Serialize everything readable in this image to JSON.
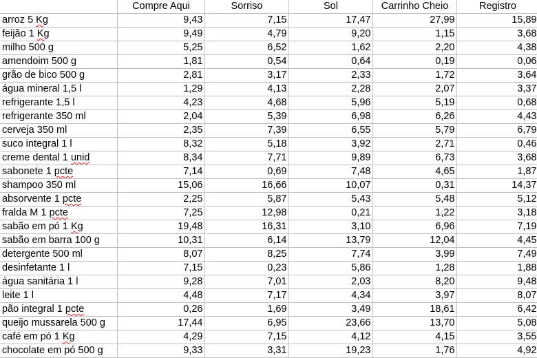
{
  "headers": [
    "",
    "Compre Aqui",
    "Sorriso",
    "Sol",
    "Carrinho Cheio",
    "Registro"
  ],
  "rows": [
    {
      "item": "arroz 5 Kg",
      "spell": "Kg",
      "values": [
        "9,43",
        "7,15",
        "17,47",
        "27,99",
        "15,89"
      ]
    },
    {
      "item": "feijão 1 Kg",
      "spell": "Kg",
      "values": [
        "9,49",
        "4,79",
        "9,20",
        "1,15",
        "3,68"
      ]
    },
    {
      "item": "milho 500 g",
      "spell": "",
      "values": [
        "5,25",
        "6,52",
        "1,62",
        "2,20",
        "4,38"
      ]
    },
    {
      "item": "amendoim 500 g",
      "spell": "",
      "values": [
        "1,81",
        "0,54",
        "0,64",
        "0,19",
        "0,06"
      ]
    },
    {
      "item": "grão de bico 500 g",
      "spell": "",
      "values": [
        "2,81",
        "3,17",
        "2,33",
        "1,72",
        "3,64"
      ]
    },
    {
      "item": "água mineral 1,5 l",
      "spell": "",
      "values": [
        "1,29",
        "4,13",
        "2,28",
        "2,07",
        "3,37"
      ]
    },
    {
      "item": "refrigerante 1,5 l",
      "spell": "",
      "values": [
        "4,23",
        "4,68",
        "5,96",
        "5,19",
        "0,68"
      ]
    },
    {
      "item": "refrigerante 350 ml",
      "spell": "",
      "values": [
        "2,04",
        "5,39",
        "6,98",
        "6,26",
        "4,43"
      ]
    },
    {
      "item": "cerveja 350 ml",
      "spell": "",
      "values": [
        "2,35",
        "7,39",
        "6,55",
        "5,79",
        "6,79"
      ]
    },
    {
      "item": "suco integral 1 l",
      "spell": "",
      "values": [
        "8,32",
        "5,18",
        "3,92",
        "2,71",
        "0,46"
      ]
    },
    {
      "item": "creme dental 1 unid",
      "spell": "unid",
      "values": [
        "8,34",
        "7,71",
        "9,89",
        "6,73",
        "3,68"
      ]
    },
    {
      "item": "sabonete 1 pcte",
      "spell": "pcte",
      "values": [
        "7,14",
        "0,69",
        "7,48",
        "4,65",
        "1,87"
      ]
    },
    {
      "item": "shampoo 350 ml",
      "spell": "",
      "values": [
        "15,06",
        "16,66",
        "10,07",
        "0,31",
        "14,37"
      ]
    },
    {
      "item": "absorvente 1 pcte",
      "spell": "pcte",
      "values": [
        "2,25",
        "5,87",
        "5,43",
        "5,48",
        "5,12"
      ]
    },
    {
      "item": "fralda M 1 pcte",
      "spell": "pcte",
      "values": [
        "7,25",
        "12,98",
        "0,21",
        "1,22",
        "3,18"
      ]
    },
    {
      "item": "sabão em pó 1 Kg",
      "spell": "Kg",
      "values": [
        "19,48",
        "16,31",
        "3,10",
        "6,96",
        "7,19"
      ]
    },
    {
      "item": "sabão em barra 100 g",
      "spell": "",
      "values": [
        "10,31",
        "6,14",
        "13,79",
        "12,04",
        "4,45"
      ]
    },
    {
      "item": "detergente 500 ml",
      "spell": "",
      "values": [
        "8,07",
        "8,25",
        "7,74",
        "3,99",
        "7,49"
      ]
    },
    {
      "item": "desinfetante 1 l",
      "spell": "",
      "values": [
        "7,15",
        "0,23",
        "5,86",
        "1,28",
        "1,88"
      ]
    },
    {
      "item": "água sanitária 1 l",
      "spell": "",
      "values": [
        "9,28",
        "7,01",
        "2,03",
        "8,20",
        "9,48"
      ]
    },
    {
      "item": "leite 1 l",
      "spell": "",
      "values": [
        "4,48",
        "7,17",
        "4,34",
        "3,97",
        "8,07"
      ]
    },
    {
      "item": "pão integral 1 pcte",
      "spell": "pcte",
      "values": [
        "0,26",
        "1,69",
        "3,49",
        "18,61",
        "6,42"
      ]
    },
    {
      "item": "queijo mussarela 500 g",
      "spell": "",
      "values": [
        "17,44",
        "6,95",
        "23,66",
        "13,70",
        "5,08"
      ]
    },
    {
      "item": "café em pó 1 Kg",
      "spell": "Kg",
      "values": [
        "4,29",
        "7,15",
        "4,12",
        "4,15",
        "3,55"
      ]
    },
    {
      "item": "chocolate em pó 500 g",
      "spell": "",
      "values": [
        "9,33",
        "3,31",
        "19,23",
        "1,76",
        "4,92"
      ]
    }
  ]
}
